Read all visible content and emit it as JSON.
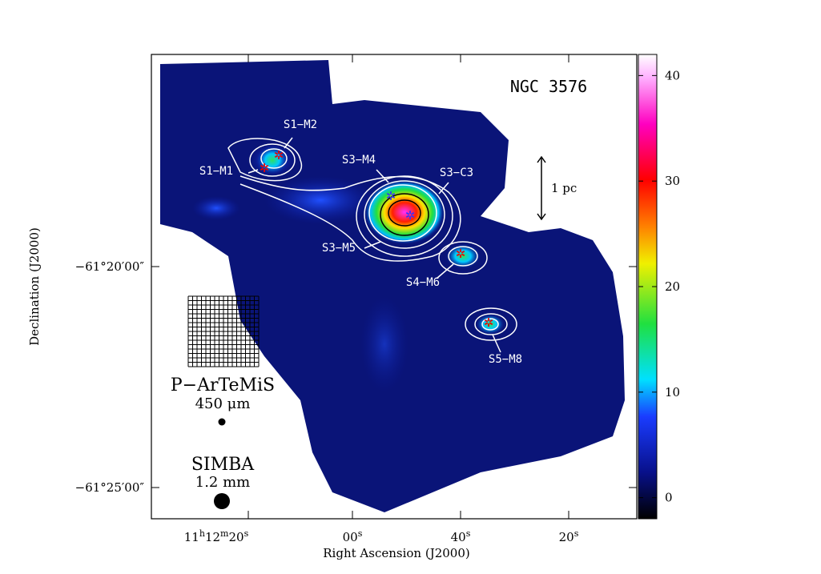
{
  "title": "NGC 3576",
  "scale_bar": "1 pc",
  "x_axis": {
    "label": "Right Ascension (J2000)",
    "ticks": [
      [
        "11",
        "h",
        "12",
        "m",
        "20",
        "s"
      ],
      [
        "00",
        "s"
      ],
      [
        "40",
        "s"
      ],
      [
        "20",
        "s"
      ]
    ]
  },
  "y_axis": {
    "label": "Declination (J2000)",
    "ticks": [
      "−61°20′00″",
      "−61°25′00″"
    ]
  },
  "colorbar": {
    "range": [
      -2,
      42
    ],
    "ticks": [
      0,
      10,
      20,
      30,
      40
    ]
  },
  "sources": [
    "S1−M2",
    "S1−M1",
    "S3−M4",
    "S3−C3",
    "S3−M5",
    "S4−M6",
    "S5−M8"
  ],
  "legend": {
    "instrument1": "P−ArTeMiS",
    "wavelength1": "450 μm",
    "instrument2": "SIMBA",
    "wavelength2": "1.2 mm"
  }
}
